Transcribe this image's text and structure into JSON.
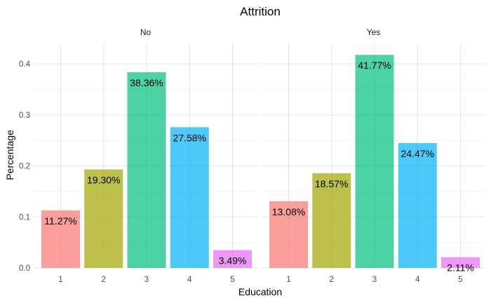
{
  "chart_data": {
    "type": "bar",
    "title": "Attrition",
    "xlabel": "Education",
    "ylabel": "Percentage",
    "categories": [
      "1",
      "2",
      "3",
      "4",
      "5"
    ],
    "ylim": [
      0,
      0.44
    ],
    "yticks": [
      "0.0",
      "0.1",
      "0.2",
      "0.3",
      "0.4"
    ],
    "grid": true,
    "colors": [
      "#F8766D",
      "#A3A500",
      "#00BF7D",
      "#00B0F6",
      "#E76BF3"
    ],
    "facets": [
      {
        "strip": "No",
        "values": [
          0.1127,
          0.193,
          0.3836,
          0.2758,
          0.0349
        ],
        "labels": [
          "11.27%",
          "19.30%",
          "38.36%",
          "27.58%",
          "3.49%"
        ]
      },
      {
        "strip": "Yes",
        "values": [
          0.1308,
          0.1857,
          0.4177,
          0.2447,
          0.0211
        ],
        "labels": [
          "13.08%",
          "18.57%",
          "41.77%",
          "24.47%",
          "2.11%"
        ]
      }
    ]
  }
}
